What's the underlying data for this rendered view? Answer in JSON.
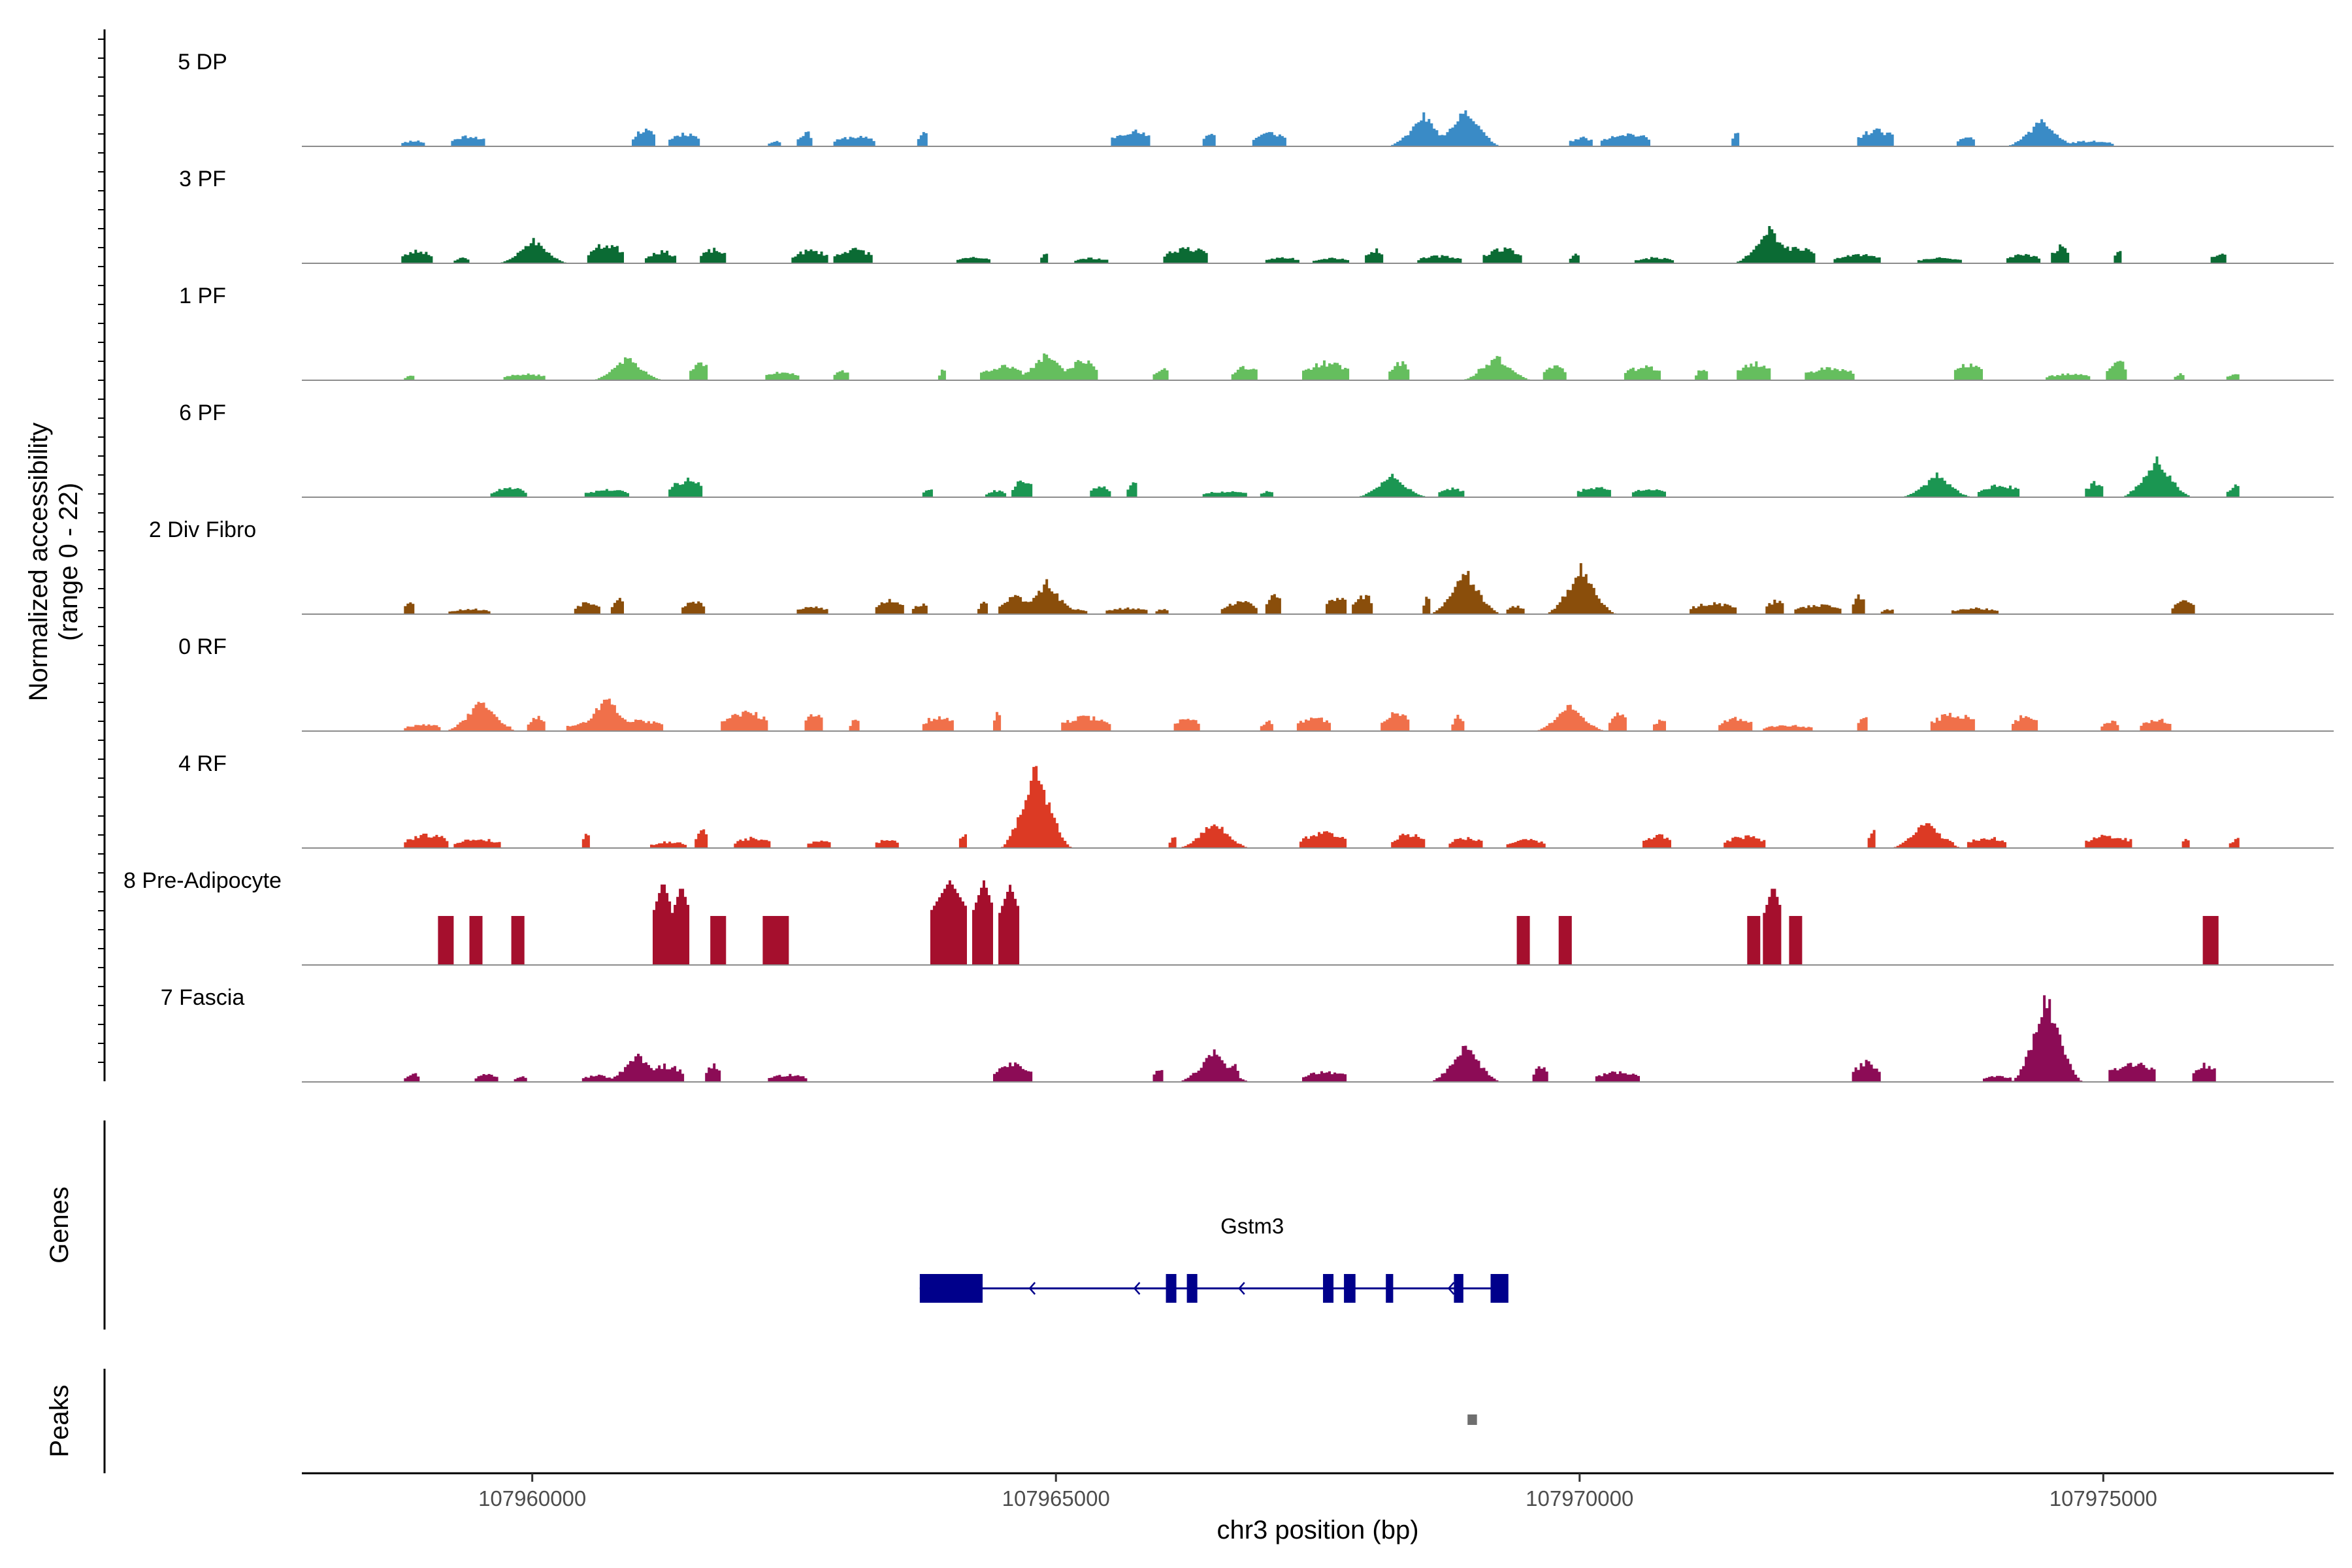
{
  "chart_data": {
    "type": "coverage",
    "title": "",
    "xlabel": "chr3 position (bp)",
    "ylabel_line1": "Normalized accessibility",
    "ylabel_line2": "(range 0 - 22)",
    "y_range": [
      0,
      22
    ],
    "x_range": [
      107957800,
      107977200
    ],
    "x_ticks": [
      107960000,
      107965000,
      107970000,
      107975000
    ],
    "x_tick_labels": [
      "107960000",
      "107965000",
      "107970000",
      "107975000"
    ],
    "tracks": [
      {
        "name": "5 DP",
        "color": "#3A8BC6",
        "seed": 11,
        "density": 0.55,
        "step": false,
        "hotspots": [
          [
            107968500,
            8
          ],
          [
            107968900,
            10
          ],
          [
            107974400,
            7
          ]
        ]
      },
      {
        "name": "3 PF",
        "color": "#0B6B34",
        "seed": 23,
        "density": 0.75,
        "step": false,
        "hotspots": [
          [
            107971800,
            9
          ],
          [
            107960000,
            6
          ]
        ]
      },
      {
        "name": "1 PF",
        "color": "#65BE5E",
        "seed": 37,
        "density": 0.7,
        "step": false,
        "hotspots": [
          [
            107964900,
            7
          ],
          [
            107960900,
            6
          ],
          [
            107969200,
            6
          ]
        ]
      },
      {
        "name": "6 PF",
        "color": "#1B9652",
        "seed": 41,
        "density": 0.62,
        "step": false,
        "hotspots": [
          [
            107975500,
            10
          ],
          [
            107973400,
            6
          ],
          [
            107968200,
            6
          ]
        ]
      },
      {
        "name": "2 Div Fibro",
        "color": "#8A4E0B",
        "seed": 53,
        "density": 0.72,
        "step": false,
        "hotspots": [
          [
            107970000,
            12
          ],
          [
            107968900,
            11
          ],
          [
            107964900,
            8
          ]
        ]
      },
      {
        "name": "0 RF",
        "color": "#F0704A",
        "seed": 67,
        "density": 0.85,
        "step": false,
        "hotspots": [
          [
            107960700,
            9
          ],
          [
            107959500,
            8
          ],
          [
            107969900,
            7
          ]
        ]
      },
      {
        "name": "4 RF",
        "color": "#DC3A24",
        "seed": 79,
        "density": 0.75,
        "step": false,
        "hotspots": [
          [
            107964800,
            22
          ],
          [
            107966500,
            7
          ],
          [
            107973300,
            7
          ]
        ]
      },
      {
        "name": "8 Pre-Adipocyte",
        "color": "#A50F2D",
        "seed": 83,
        "density": 0.0,
        "step": true,
        "blocks": [
          [
            107959100,
            107959250,
            11
          ],
          [
            107959400,
            107959520,
            11
          ],
          [
            107959800,
            107959910,
            11
          ],
          [
            107961170,
            107961320,
            19
          ],
          [
            107961330,
            107961500,
            18
          ],
          [
            107961700,
            107961850,
            11
          ],
          [
            107962200,
            107962430,
            11
          ],
          [
            107963800,
            107964150,
            19
          ],
          [
            107964200,
            107964400,
            19
          ],
          [
            107964450,
            107964650,
            18
          ],
          [
            107969400,
            107969520,
            11
          ],
          [
            107969800,
            107969920,
            11
          ],
          [
            107971600,
            107971710,
            11
          ],
          [
            107971750,
            107971910,
            18
          ],
          [
            107972000,
            107972110,
            11
          ],
          [
            107975950,
            107976080,
            11
          ]
        ]
      },
      {
        "name": "7 Fascia",
        "color": "#8C0C56",
        "seed": 97,
        "density": 0.72,
        "step": false,
        "hotspots": [
          [
            107974450,
            22
          ],
          [
            107968900,
            10
          ],
          [
            107966500,
            8
          ],
          [
            107961000,
            7
          ]
        ]
      }
    ],
    "genes_label": "Genes",
    "gene": {
      "name": "Gstm3",
      "start": 107963700,
      "end": 107969300,
      "color": "#00008B",
      "exons": [
        [
          107963700,
          107964300,
          "utr"
        ],
        [
          107966050,
          107966150,
          "cds"
        ],
        [
          107966250,
          107966350,
          "cds"
        ],
        [
          107967550,
          107967650,
          "cds"
        ],
        [
          107967750,
          107967860,
          "cds"
        ],
        [
          107968150,
          107968220,
          "cds"
        ],
        [
          107968800,
          107968890,
          "cds"
        ],
        [
          107969150,
          107969320,
          "cds"
        ]
      ],
      "strand_arrows": [
        107964750,
        107965750,
        107966750,
        107967750,
        107968750
      ]
    },
    "peaks_label": "Peaks",
    "peaks": [
      [
        107968930,
        107969020
      ]
    ]
  }
}
